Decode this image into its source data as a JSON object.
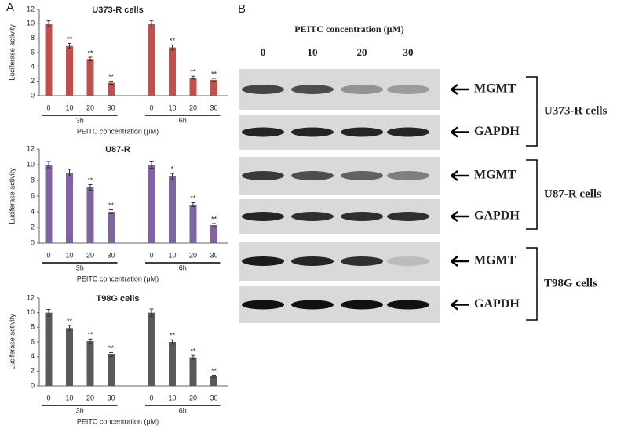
{
  "panel_labels": [
    "A",
    "B"
  ],
  "chart_data": [
    {
      "type": "bar",
      "title": "U373-R cells",
      "y_label": "Luciferase activity",
      "x_label": "PEITC concentration (μM)",
      "categories": [
        "0",
        "10",
        "20",
        "30",
        "0",
        "10",
        "20",
        "30"
      ],
      "groups": [
        "3h",
        "6h"
      ],
      "values": [
        10,
        6.9,
        5.1,
        1.8,
        10,
        6.7,
        2.5,
        2.2
      ],
      "errors": [
        0.4,
        0.35,
        0.25,
        0.2,
        0.45,
        0.35,
        0.2,
        0.2
      ],
      "annotations": [
        null,
        "**",
        "**",
        "**",
        null,
        "**",
        "**",
        "**"
      ],
      "color": "#c0504d",
      "ylim": [
        0,
        12
      ],
      "yticks": [
        0,
        2,
        4,
        6,
        8,
        10,
        12
      ]
    },
    {
      "type": "bar",
      "title": "U87-R",
      "y_label": "Luciferase activity",
      "x_label": "PEITC concentration (μM)",
      "categories": [
        "0",
        "10",
        "20",
        "30",
        "0",
        "10",
        "20",
        "30"
      ],
      "groups": [
        "3h",
        "6h"
      ],
      "values": [
        10,
        9,
        7.1,
        4,
        10,
        8.5,
        4.9,
        2.3
      ],
      "errors": [
        0.4,
        0.4,
        0.35,
        0.25,
        0.45,
        0.4,
        0.25,
        0.2
      ],
      "annotations": [
        null,
        null,
        "**",
        "**",
        null,
        "*",
        "**",
        "**"
      ],
      "color": "#8064a2",
      "ylim": [
        0,
        12
      ],
      "yticks": [
        0,
        2,
        4,
        6,
        8,
        10,
        12
      ]
    },
    {
      "type": "bar",
      "title": "T98G cells",
      "y_label": "Luciferase activity",
      "x_label": "PEITC concentration (μM)",
      "categories": [
        "0",
        "10",
        "20",
        "30",
        "0",
        "10",
        "20",
        "30"
      ],
      "groups": [
        "3h",
        "6h"
      ],
      "values": [
        10,
        7.9,
        6.1,
        4.3,
        10,
        6,
        3.9,
        1.3
      ],
      "errors": [
        0.45,
        0.35,
        0.3,
        0.25,
        0.5,
        0.3,
        0.25,
        0.15
      ],
      "annotations": [
        null,
        "**",
        "**",
        "**",
        null,
        "**",
        "**",
        "**"
      ],
      "color": "#595959",
      "ylim": [
        0,
        12
      ],
      "yticks": [
        0,
        2,
        4,
        6,
        8,
        10,
        12
      ]
    }
  ],
  "blot": {
    "title": "PEITC concentration (μM)",
    "lanes": [
      "0",
      "10",
      "20",
      "30"
    ],
    "rows": [
      "MGMT",
      "GAPDH",
      "MGMT",
      "GAPDH",
      "MGMT",
      "GAPDH"
    ],
    "cells": [
      "U373-R cells",
      "U87-R cells",
      "T98G cells"
    ]
  }
}
